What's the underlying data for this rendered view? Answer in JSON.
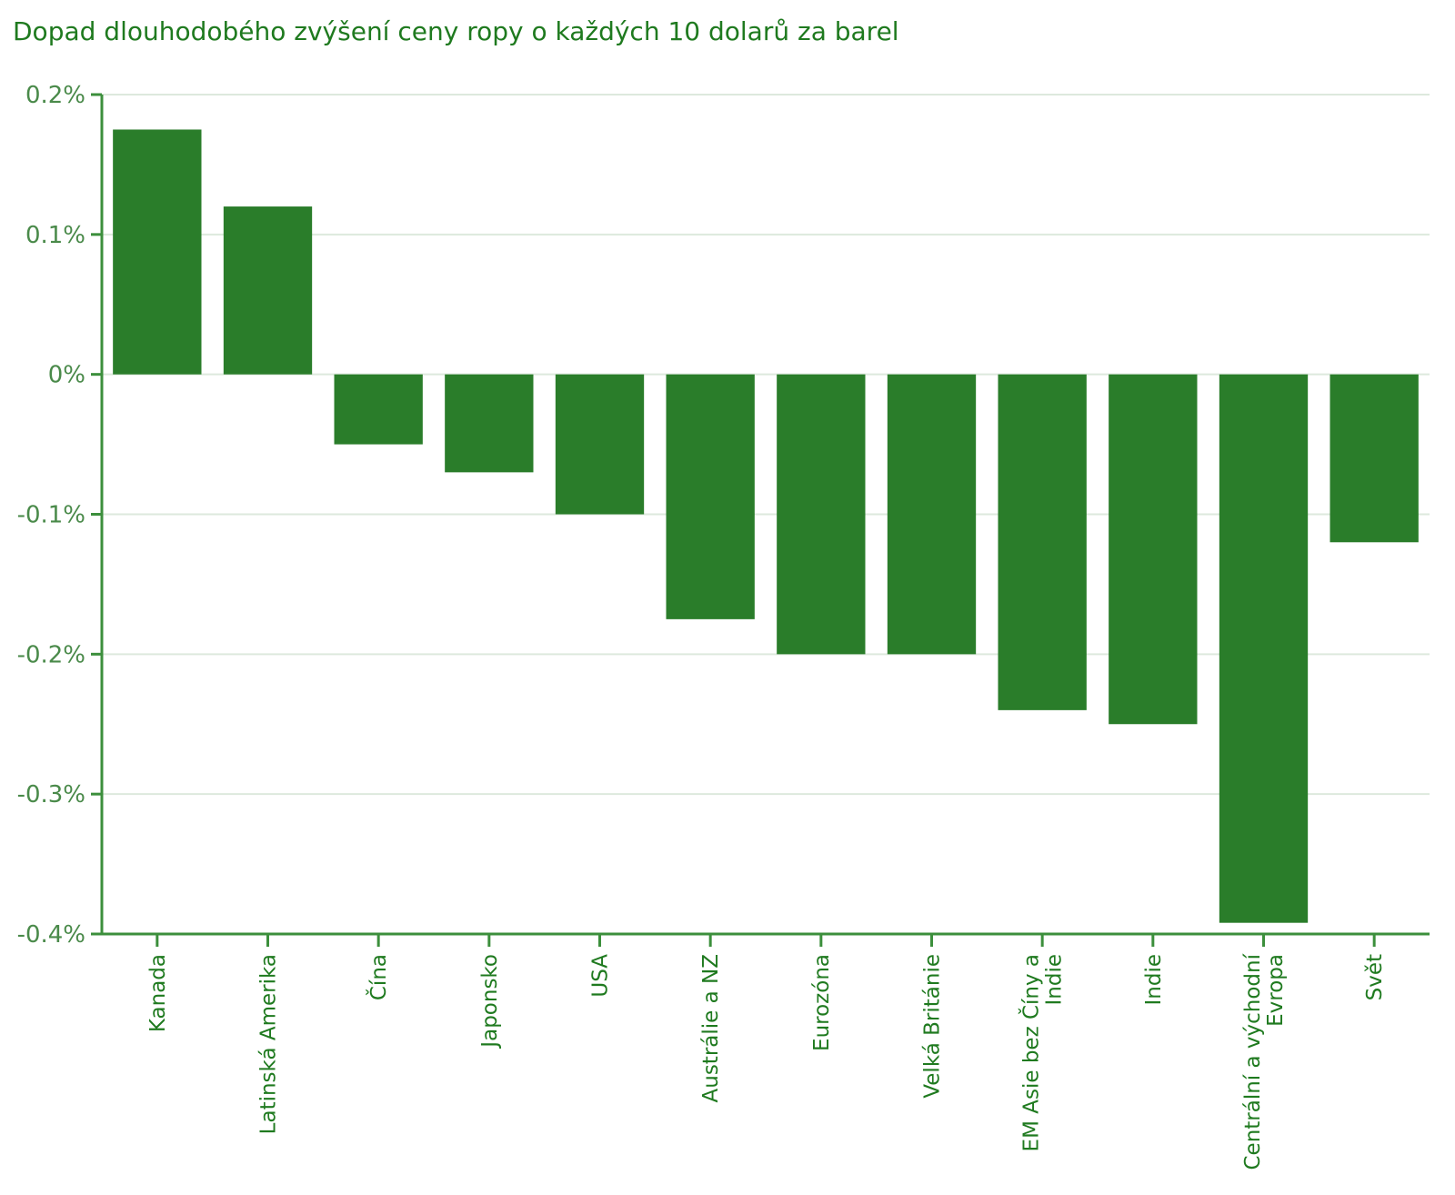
{
  "chart_data": {
    "type": "bar",
    "title": "Dopad dlouhodobého zvýšení ceny ropy o každých 10 dolarů za barel",
    "xlabel": "",
    "ylabel": "",
    "ylim": [
      -0.4,
      0.2
    ],
    "yticks": [
      0.2,
      0.1,
      0,
      -0.1,
      -0.2,
      -0.3,
      -0.4
    ],
    "ytick_labels": [
      "0.2%",
      "0.1%",
      "0%",
      "-0.1%",
      "-0.2%",
      "-0.3%",
      "-0.4%"
    ],
    "grid": true,
    "categories": [
      "Kanada",
      "Latinská Amerika",
      "Čína",
      "Japonsko",
      "USA",
      "Austrálie a NZ",
      "Eurozóna",
      "Velká Británie",
      "EM Asie bez Číny a Indie",
      "Indie",
      "Centrální a východní Evropa",
      "Svět"
    ],
    "category_lines": [
      [
        "Kanada"
      ],
      [
        "Latinská Amerika"
      ],
      [
        "Čína"
      ],
      [
        "Japonsko"
      ],
      [
        "USA"
      ],
      [
        "Austrálie a NZ"
      ],
      [
        "Eurozóna"
      ],
      [
        "Velká Británie"
      ],
      [
        "EM Asie bez Číny a",
        "Indie"
      ],
      [
        "Indie"
      ],
      [
        "Centrální a východní",
        "Evropa"
      ],
      [
        "Svět"
      ]
    ],
    "values": [
      0.175,
      0.12,
      -0.05,
      -0.07,
      -0.1,
      -0.175,
      -0.2,
      -0.2,
      -0.24,
      -0.25,
      -0.392,
      -0.12
    ],
    "colors": {
      "bar": "#2a7d2a",
      "axis": "#3c8f3c",
      "grid": "#dde9dd",
      "tick_text": "#4a8a4a",
      "label_text": "#1f7a1f"
    }
  }
}
